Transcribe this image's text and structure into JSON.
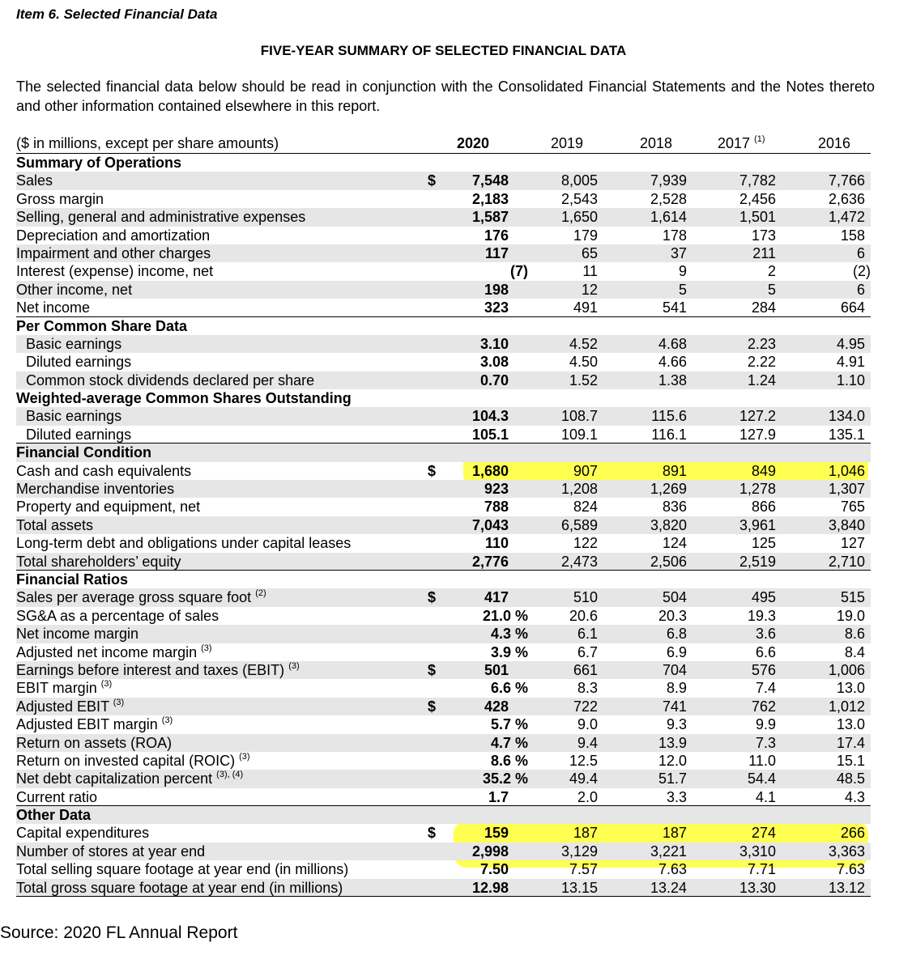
{
  "item_title": "Item 6. Selected Financial Data",
  "summary_title": "FIVE-YEAR SUMMARY OF SELECTED FINANCIAL DATA",
  "intro": "The selected financial data below should be read in conjunction with the Consolidated Financial Statements and the Notes thereto and other information contained elsewhere in this report.",
  "header": {
    "label": "($ in millions, except per share amounts)",
    "years": [
      "2020",
      "2019",
      "2018",
      "2017",
      "2016"
    ],
    "footnote_2017": "(1)"
  },
  "rows": [
    {
      "label": "Summary of Operations",
      "type": "section"
    },
    {
      "label": "Sales",
      "dollar": "$",
      "values": [
        "7,548",
        "8,005",
        "7,939",
        "7,782",
        "7,766"
      ],
      "shade": true
    },
    {
      "label": "Gross margin",
      "values": [
        "2,183",
        "2,543",
        "2,528",
        "2,456",
        "2,636"
      ]
    },
    {
      "label": "Selling, general and administrative expenses",
      "values": [
        "1,587",
        "1,650",
        "1,614",
        "1,501",
        "1,472"
      ],
      "shade": true
    },
    {
      "label": "Depreciation and amortization",
      "values": [
        "176",
        "179",
        "178",
        "173",
        "158"
      ]
    },
    {
      "label": "Impairment and other charges",
      "values": [
        "117",
        "65",
        "37",
        "211",
        "6"
      ],
      "shade": true
    },
    {
      "label": "Interest (expense) income, net",
      "values": [
        "(7)",
        "11",
        "9",
        "2",
        "(2)"
      ]
    },
    {
      "label": "Other income, net",
      "values": [
        "198",
        "12",
        "5",
        "5",
        "6"
      ],
      "shade": true
    },
    {
      "label": "Net income",
      "values": [
        "323",
        "491",
        "541",
        "284",
        "664"
      ],
      "underline": true
    },
    {
      "label": "Per Common Share Data",
      "type": "section"
    },
    {
      "label": "Basic earnings",
      "indent": true,
      "values": [
        "3.10",
        "4.52",
        "4.68",
        "2.23",
        "4.95"
      ],
      "shade": true
    },
    {
      "label": "Diluted earnings",
      "indent": true,
      "values": [
        "3.08",
        "4.50",
        "4.66",
        "2.22",
        "4.91"
      ]
    },
    {
      "label": "Common stock dividends declared per share",
      "indent": true,
      "values": [
        "0.70",
        "1.52",
        "1.38",
        "1.24",
        "1.10"
      ],
      "shade": true
    },
    {
      "label": "Weighted-average Common Shares Outstanding",
      "type": "section"
    },
    {
      "label": "Basic earnings",
      "indent": true,
      "values": [
        "104.3",
        "108.7",
        "115.6",
        "127.2",
        "134.0"
      ],
      "shade": true
    },
    {
      "label": "Diluted earnings",
      "indent": true,
      "values": [
        "105.1",
        "109.1",
        "116.1",
        "127.9",
        "135.1"
      ],
      "underline": true
    },
    {
      "label": "Financial Condition",
      "type": "section",
      "shade": true
    },
    {
      "label": "Cash and cash equivalents",
      "dollar": "$",
      "values": [
        "1,680",
        "907",
        "891",
        "849",
        "1,046"
      ]
    },
    {
      "label": "Merchandise inventories",
      "values": [
        "923",
        "1,208",
        "1,269",
        "1,278",
        "1,307"
      ],
      "shade": true
    },
    {
      "label": "Property and equipment, net",
      "values": [
        "788",
        "824",
        "836",
        "866",
        "765"
      ]
    },
    {
      "label": "Total assets",
      "values": [
        "7,043",
        "6,589",
        "3,820",
        "3,961",
        "3,840"
      ],
      "shade": true
    },
    {
      "label": "Long-term debt and obligations under capital leases",
      "values": [
        "110",
        "122",
        "124",
        "125",
        "127"
      ]
    },
    {
      "label": "Total shareholders’ equity",
      "values": [
        "2,776",
        "2,473",
        "2,506",
        "2,519",
        "2,710"
      ],
      "shade": true,
      "underline": true
    },
    {
      "label": "Financial Ratios",
      "type": "section"
    },
    {
      "label": "Sales per average gross square foot",
      "footnote": "(2)",
      "dollar": "$",
      "values": [
        "417",
        "510",
        "504",
        "495",
        "515"
      ],
      "shade": true
    },
    {
      "label": "SG&A as a percentage of sales",
      "values": [
        "21.0 %",
        "20.6",
        "20.3",
        "19.3",
        "19.0"
      ]
    },
    {
      "label": "Net income margin",
      "values": [
        "4.3 %",
        "6.1",
        "6.8",
        "3.6",
        "8.6"
      ],
      "shade": true
    },
    {
      "label": "Adjusted net income margin",
      "footnote": "(3)",
      "values": [
        "3.9 %",
        "6.7",
        "6.9",
        "6.6",
        "8.4"
      ]
    },
    {
      "label": "Earnings before interest and taxes (EBIT)",
      "footnote": "(3)",
      "dollar": "$",
      "values": [
        "501",
        "661",
        "704",
        "576",
        "1,006"
      ],
      "shade": true
    },
    {
      "label": "EBIT margin",
      "footnote": "(3)",
      "values": [
        "6.6 %",
        "8.3",
        "8.9",
        "7.4",
        "13.0"
      ]
    },
    {
      "label": "Adjusted EBIT",
      "footnote": "(3)",
      "dollar": "$",
      "values": [
        "428",
        "722",
        "741",
        "762",
        "1,012"
      ],
      "shade": true
    },
    {
      "label": "Adjusted EBIT margin",
      "footnote": "(3)",
      "values": [
        "5.7 %",
        "9.0",
        "9.3",
        "9.9",
        "13.0"
      ]
    },
    {
      "label": "Return on assets (ROA)",
      "values": [
        "4.7 %",
        "9.4",
        "13.9",
        "7.3",
        "17.4"
      ],
      "shade": true
    },
    {
      "label": "Return on invested capital (ROIC)",
      "footnote": "(3)",
      "values": [
        "8.6 %",
        "12.5",
        "12.0",
        "11.0",
        "15.1"
      ]
    },
    {
      "label": "Net debt capitalization percent",
      "footnote": "(3), (4)",
      "values": [
        "35.2 %",
        "49.4",
        "51.7",
        "54.4",
        "48.5"
      ],
      "shade": true
    },
    {
      "label": "Current ratio",
      "values": [
        "1.7",
        "2.0",
        "3.3",
        "4.1",
        "4.3"
      ],
      "underline": true
    },
    {
      "label": "Other Data",
      "type": "section",
      "shade": true
    },
    {
      "label": "Capital expenditures",
      "dollar": "$",
      "values": [
        "159",
        "187",
        "187",
        "274",
        "266"
      ]
    },
    {
      "label": "Number of stores at year end",
      "values": [
        "2,998",
        "3,129",
        "3,221",
        "3,310",
        "3,363"
      ],
      "shade": true
    },
    {
      "label": "Total selling square footage at year end (in millions)",
      "values": [
        "7.50",
        "7.57",
        "7.63",
        "7.71",
        "7.63"
      ]
    },
    {
      "label": "Total gross square footage at year end (in millions)",
      "values": [
        "12.98",
        "13.15",
        "13.24",
        "13.30",
        "13.12"
      ],
      "shade": true,
      "underline": true
    }
  ],
  "source": "Source: 2020 FL Annual Report",
  "highlight_color": "#ffff33",
  "shade_color": "#e6e6e6"
}
